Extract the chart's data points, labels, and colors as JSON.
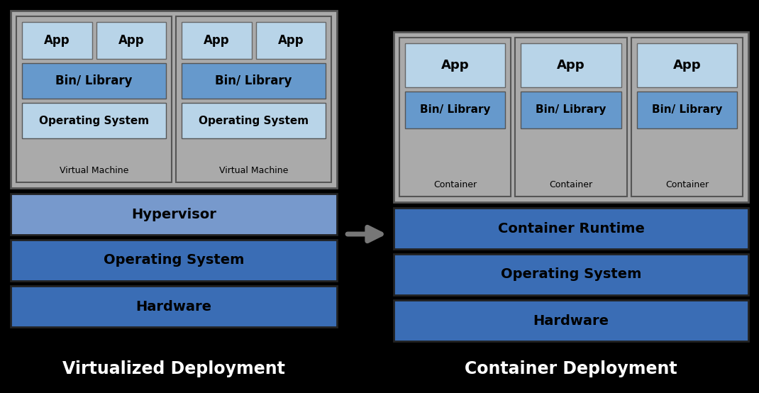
{
  "bg_color": "#000000",
  "light_blue": "#b8d4e8",
  "medium_blue": "#6699cc",
  "hypervisor_blue": "#7799cc",
  "dark_blue": "#3366aa",
  "gray_vm": "#aaaaaa",
  "gray_panel": "#aaaaaa",
  "text_dark": "#000000",
  "text_white": "#ffffff",
  "left_title": "Virtualized Deployment",
  "right_title": "Container Deployment",
  "left_layers": [
    "Hypervisor",
    "Operating System",
    "Hardware"
  ],
  "right_layers": [
    "Container Runtime",
    "Operating System",
    "Hardware"
  ],
  "left_layer_colors": [
    "#7799cc",
    "#3a6db5",
    "#3a6db5"
  ],
  "right_layer_colors": [
    "#3a6db5",
    "#3a6db5",
    "#3a6db5"
  ],
  "arrow_color": "#777777"
}
